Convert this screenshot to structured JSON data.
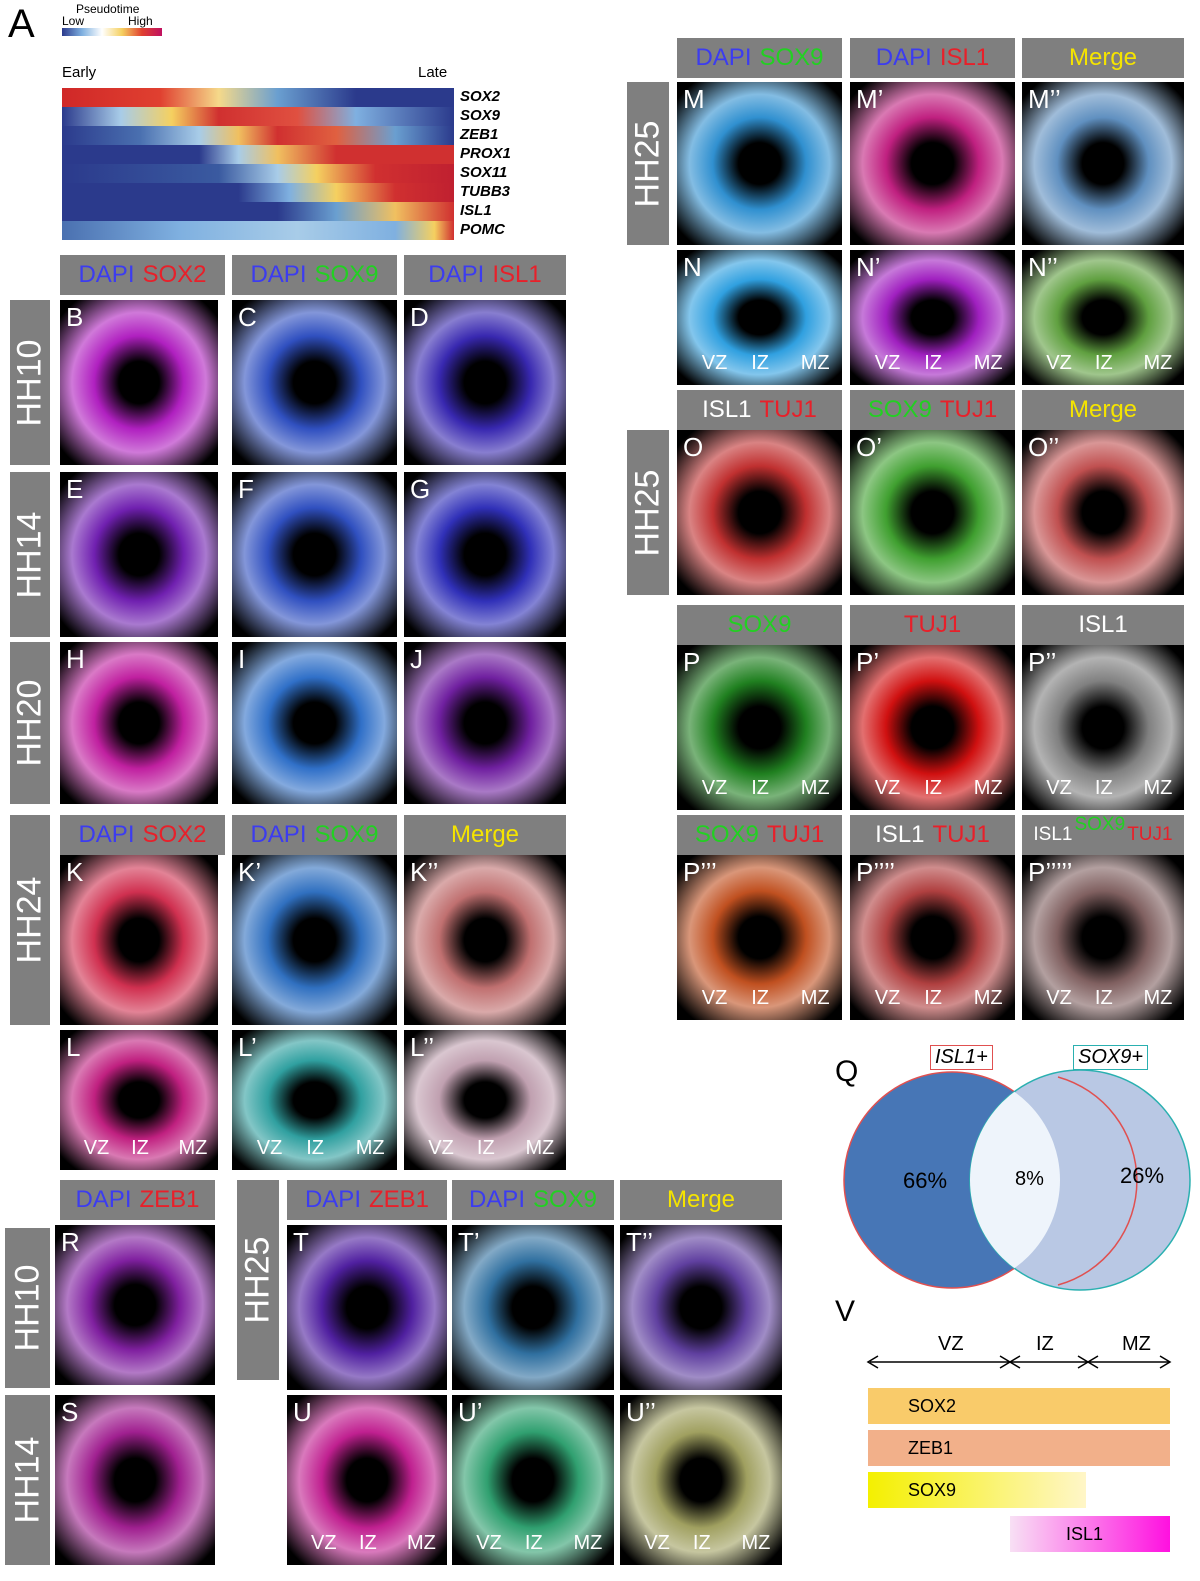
{
  "panel_a": {
    "letter": "A",
    "legend_title": "Pseudotime",
    "legend_low": "Low",
    "legend_high": "High",
    "early": "Early",
    "late": "Late",
    "genes": [
      "SOX2",
      "SOX9",
      "ZEB1",
      "PROX1",
      "SOX11",
      "TUBB3",
      "ISL1",
      "POMC"
    ]
  },
  "headers": [
    {
      "parts": [
        {
          "text": "DAPI",
          "color": "#3c3cf0"
        },
        {
          "text": "SOX2",
          "color": "#e8202a"
        }
      ]
    },
    {
      "parts": [
        {
          "text": "DAPI",
          "color": "#3c3cf0"
        },
        {
          "text": "SOX9",
          "color": "#22d022"
        }
      ]
    },
    {
      "parts": [
        {
          "text": "DAPI",
          "color": "#3c3cf0"
        },
        {
          "text": "ISL1",
          "color": "#e8202a"
        }
      ]
    },
    {
      "parts": [
        {
          "text": "DAPI",
          "color": "#3c3cf0"
        },
        {
          "text": "SOX2",
          "color": "#e8202a"
        }
      ]
    },
    {
      "parts": [
        {
          "text": "DAPI",
          "color": "#3c3cf0"
        },
        {
          "text": "SOX9",
          "color": "#22d022"
        }
      ]
    },
    {
      "parts": [
        {
          "text": "Merge",
          "color": "#f5e400"
        }
      ]
    },
    {
      "parts": [
        {
          "text": "DAPI",
          "color": "#3c3cf0"
        },
        {
          "text": "ZEB1",
          "color": "#e8202a"
        }
      ]
    },
    {
      "parts": [
        {
          "text": "DAPI",
          "color": "#3c3cf0"
        },
        {
          "text": "ZEB1",
          "color": "#e8202a"
        }
      ]
    },
    {
      "parts": [
        {
          "text": "DAPI",
          "color": "#3c3cf0"
        },
        {
          "text": "SOX9",
          "color": "#22d022"
        }
      ]
    },
    {
      "parts": [
        {
          "text": "Merge",
          "color": "#f5e400"
        }
      ]
    },
    {
      "parts": [
        {
          "text": "DAPI",
          "color": "#3c3cf0"
        },
        {
          "text": "SOX9",
          "color": "#22d022"
        }
      ]
    },
    {
      "parts": [
        {
          "text": "DAPI",
          "color": "#3c3cf0"
        },
        {
          "text": "ISL1",
          "color": "#e8202a"
        }
      ]
    },
    {
      "parts": [
        {
          "text": "Merge",
          "color": "#f5e400"
        }
      ]
    },
    {
      "parts": [
        {
          "text": "ISL1",
          "color": "#ffffff"
        },
        {
          "text": "TUJ1",
          "color": "#e8202a"
        }
      ]
    },
    {
      "parts": [
        {
          "text": "SOX9",
          "color": "#22d022"
        },
        {
          "text": "TUJ1",
          "color": "#e8202a"
        }
      ]
    },
    {
      "parts": [
        {
          "text": "Merge",
          "color": "#f5e400"
        }
      ]
    },
    {
      "parts": [
        {
          "text": "SOX9",
          "color": "#22d022"
        }
      ]
    },
    {
      "parts": [
        {
          "text": "TUJ1",
          "color": "#e8202a"
        }
      ]
    },
    {
      "parts": [
        {
          "text": "ISL1",
          "color": "#ffffff"
        }
      ]
    },
    {
      "parts": [
        {
          "text": "SOX9",
          "color": "#22d022"
        },
        {
          "text": "TUJ1",
          "color": "#e8202a"
        }
      ]
    },
    {
      "parts": [
        {
          "text": "ISL1",
          "color": "#ffffff"
        },
        {
          "text": "TUJ1",
          "color": "#e8202a"
        }
      ]
    },
    {
      "parts": [
        {
          "text": "ISL1",
          "color": "#ffffff"
        },
        {
          "text": "SOX9",
          "color": "#22d022"
        },
        {
          "text": "TUJ1",
          "color": "#e8202a"
        }
      ]
    }
  ],
  "stages": [
    "HH10",
    "HH14",
    "HH20",
    "HH24",
    "HH10",
    "HH14",
    "HH25",
    "HH25",
    "HH25"
  ],
  "images": [
    {
      "letter": "B"
    },
    {
      "letter": "C"
    },
    {
      "letter": "D"
    },
    {
      "letter": "E"
    },
    {
      "letter": "F"
    },
    {
      "letter": "G"
    },
    {
      "letter": "H"
    },
    {
      "letter": "I"
    },
    {
      "letter": "J"
    },
    {
      "letter": "K"
    },
    {
      "letter": "K’"
    },
    {
      "letter": "K’’"
    },
    {
      "letter": "L",
      "zones": [
        "VZ",
        "IZ",
        "MZ"
      ]
    },
    {
      "letter": "L’",
      "zones": [
        "VZ",
        "IZ",
        "MZ"
      ]
    },
    {
      "letter": "L’’",
      "zones": [
        "VZ",
        "IZ",
        "MZ"
      ]
    },
    {
      "letter": "R"
    },
    {
      "letter": "S"
    },
    {
      "letter": "T"
    },
    {
      "letter": "T’"
    },
    {
      "letter": "T’’"
    },
    {
      "letter": "U",
      "zones": [
        "VZ",
        "IZ",
        "MZ"
      ]
    },
    {
      "letter": "U’",
      "zones": [
        "VZ",
        "IZ",
        "MZ"
      ]
    },
    {
      "letter": "U’’",
      "zones": [
        "VZ",
        "IZ",
        "MZ"
      ]
    },
    {
      "letter": "M"
    },
    {
      "letter": "M’"
    },
    {
      "letter": "M’’"
    },
    {
      "letter": "N",
      "zones": [
        "VZ",
        "IZ",
        "MZ"
      ]
    },
    {
      "letter": "N’",
      "zones": [
        "VZ",
        "IZ",
        "MZ"
      ]
    },
    {
      "letter": "N’’",
      "zones": [
        "VZ",
        "IZ",
        "MZ"
      ]
    },
    {
      "letter": "O"
    },
    {
      "letter": "O’"
    },
    {
      "letter": "O’’"
    },
    {
      "letter": "P",
      "zones": [
        "VZ",
        "IZ",
        "MZ"
      ]
    },
    {
      "letter": "P’",
      "zones": [
        "VZ",
        "IZ",
        "MZ"
      ]
    },
    {
      "letter": "P’’",
      "zones": [
        "VZ",
        "IZ",
        "MZ"
      ]
    },
    {
      "letter": "P’’’",
      "zones": [
        "VZ",
        "IZ",
        "MZ"
      ]
    },
    {
      "letter": "P’’’’",
      "zones": [
        "VZ",
        "IZ",
        "MZ"
      ]
    },
    {
      "letter": "P’’’’’",
      "zones": [
        "VZ",
        "IZ",
        "MZ"
      ]
    }
  ],
  "venn": {
    "letter": "Q",
    "left_label": "ISL1+",
    "right_label": "SOX9+",
    "left_value": "66%",
    "middle_value": "8%",
    "right_value": "26%"
  },
  "diagram_v": {
    "letter": "V",
    "zones": [
      "VZ",
      "IZ",
      "MZ"
    ],
    "bars": [
      "SOX2",
      "ZEB1",
      "SOX9",
      "ISL1"
    ]
  }
}
